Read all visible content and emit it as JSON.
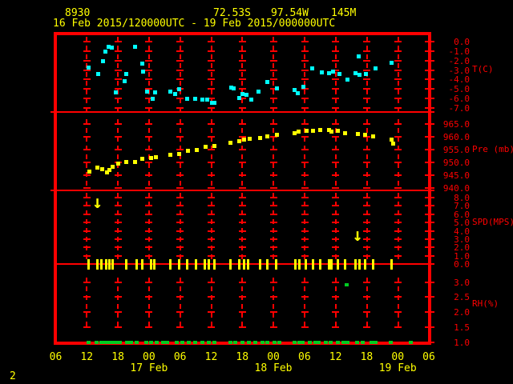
{
  "header": {
    "station_id": "8930",
    "latitude": "72.53S",
    "longitude": "97.54W",
    "elevation": "145M",
    "time_range": "16 Feb 2015/120000UTC - 19 Feb 2015/000000UTC"
  },
  "page_number": "2",
  "colors": {
    "background": "#000000",
    "grid": "#ff0000",
    "axis_text": "#ff0000",
    "label_text": "#ffff00",
    "temperature": "#00ffff",
    "pressure": "#ffff00",
    "wind": "#ffff00",
    "humidity": "#00cc22"
  },
  "x_axis": {
    "unit": "hours since 16 Feb 2015 0600UTC",
    "hour_step": 6,
    "total_hours": 72,
    "hour_labels": [
      "06",
      "12",
      "18",
      "00",
      "06",
      "12",
      "18",
      "00",
      "06",
      "12",
      "18",
      "00",
      "06"
    ],
    "date_labels": [
      {
        "label": "17 Feb",
        "hour": 18
      },
      {
        "label": "18 Feb",
        "hour": 42
      },
      {
        "label": "19 Feb",
        "hour": 66
      }
    ]
  },
  "chart_data": [
    {
      "type": "scatter",
      "name": "air-temperature",
      "ylabel": "T(C)",
      "marker": "square",
      "color": "#00ffff",
      "ylim": [
        -7.0,
        0.0
      ],
      "yticks": [
        "0.0",
        "-1.0",
        "-2.0",
        "-3.0",
        "-4.0",
        "-5.0",
        "-6.0",
        "-7.0"
      ],
      "points": [
        [
          6.3,
          -2.7
        ],
        [
          8.1,
          -3.4
        ],
        [
          9.1,
          -2.0
        ],
        [
          9.5,
          -1.0
        ],
        [
          10.1,
          -0.5
        ],
        [
          10.8,
          -0.6
        ],
        [
          11.5,
          -5.3
        ],
        [
          13.2,
          -4.1
        ],
        [
          13.5,
          -3.4
        ],
        [
          15.3,
          -0.5
        ],
        [
          16.6,
          -2.3
        ],
        [
          16.8,
          -3.1
        ],
        [
          17.6,
          -5.2
        ],
        [
          18.7,
          -6.0
        ],
        [
          19.1,
          -5.3
        ],
        [
          22.1,
          -5.2
        ],
        [
          23.0,
          -5.5
        ],
        [
          23.8,
          -5.0
        ],
        [
          25.3,
          -6.0
        ],
        [
          26.9,
          -6.0
        ],
        [
          28.3,
          -6.1
        ],
        [
          29.2,
          -6.1
        ],
        [
          30.1,
          -6.4
        ],
        [
          30.6,
          -6.4
        ],
        [
          33.8,
          -4.8
        ],
        [
          34.2,
          -4.9
        ],
        [
          35.4,
          -5.9
        ],
        [
          36.0,
          -5.5
        ],
        [
          36.8,
          -5.6
        ],
        [
          37.6,
          -6.1
        ],
        [
          39.1,
          -5.2
        ],
        [
          40.8,
          -4.2
        ],
        [
          42.6,
          -4.9
        ],
        [
          46.0,
          -5.1
        ],
        [
          46.6,
          -5.4
        ],
        [
          47.7,
          -4.7
        ],
        [
          49.4,
          -2.8
        ],
        [
          51.2,
          -3.2
        ],
        [
          52.7,
          -3.3
        ],
        [
          53.5,
          -3.1
        ],
        [
          54.7,
          -3.4
        ],
        [
          56.3,
          -4.0
        ],
        [
          57.8,
          -3.3
        ],
        [
          58.4,
          -1.5
        ],
        [
          58.6,
          -3.5
        ],
        [
          59.8,
          -3.4
        ],
        [
          61.7,
          -2.8
        ],
        [
          64.7,
          -2.2
        ]
      ]
    },
    {
      "type": "scatter",
      "name": "pressure",
      "ylabel": "Pre (mb)",
      "marker": "square",
      "color": "#ffff00",
      "ylim": [
        940.0,
        965.0
      ],
      "yticks": [
        "965.0",
        "960.0",
        "955.0",
        "950.0",
        "945.0",
        "940.0"
      ],
      "points": [
        [
          6.4,
          946.5
        ],
        [
          8.0,
          948.1
        ],
        [
          8.9,
          947.5
        ],
        [
          9.8,
          946.3
        ],
        [
          10.3,
          947.1
        ],
        [
          10.9,
          948.5
        ],
        [
          12.0,
          949.6
        ],
        [
          13.5,
          950.2
        ],
        [
          15.3,
          950.4
        ],
        [
          16.7,
          951.5
        ],
        [
          18.4,
          952.0
        ],
        [
          19.2,
          952.3
        ],
        [
          22.0,
          953.0
        ],
        [
          23.7,
          953.5
        ],
        [
          25.4,
          954.8
        ],
        [
          27.1,
          955.1
        ],
        [
          28.9,
          956.1
        ],
        [
          30.5,
          956.5
        ],
        [
          33.6,
          957.7
        ],
        [
          35.4,
          958.3
        ],
        [
          36.2,
          959.2
        ],
        [
          37.3,
          959.3
        ],
        [
          39.3,
          959.8
        ],
        [
          40.8,
          960.3
        ],
        [
          42.6,
          960.8
        ],
        [
          46.0,
          961.7
        ],
        [
          46.8,
          962.1
        ],
        [
          48.3,
          962.4
        ],
        [
          49.5,
          962.4
        ],
        [
          50.9,
          962.9
        ],
        [
          52.6,
          962.7
        ],
        [
          53.2,
          962.1
        ],
        [
          54.4,
          962.4
        ],
        [
          55.8,
          961.7
        ],
        [
          58.3,
          961.2
        ],
        [
          59.7,
          960.8
        ],
        [
          61.2,
          960.3
        ],
        [
          64.8,
          959.0
        ],
        [
          65.1,
          957.6
        ]
      ]
    },
    {
      "type": "scatter",
      "name": "wind-speed",
      "ylabel": "SPD(MPS)",
      "marker": "vbar",
      "color": "#ffff00",
      "ylim": [
        0.0,
        8.0
      ],
      "yticks": [
        "8.0",
        "7.0",
        "6.0",
        "5.0",
        "4.0",
        "3.0",
        "2.0",
        "1.0",
        "0.0"
      ],
      "points": [
        [
          6.3,
          0
        ],
        [
          8.0,
          0
        ],
        [
          8.7,
          0
        ],
        [
          9.7,
          0
        ],
        [
          10.3,
          0
        ],
        [
          10.9,
          0
        ],
        [
          13.5,
          0
        ],
        [
          15.6,
          0
        ],
        [
          16.6,
          0
        ],
        [
          18.4,
          0
        ],
        [
          19.0,
          0
        ],
        [
          22.1,
          0
        ],
        [
          23.7,
          0
        ],
        [
          25.3,
          0
        ],
        [
          27.0,
          0
        ],
        [
          28.7,
          0
        ],
        [
          29.5,
          0
        ],
        [
          30.6,
          0
        ],
        [
          33.7,
          0
        ],
        [
          35.4,
          0
        ],
        [
          36.2,
          0
        ],
        [
          37.1,
          0
        ],
        [
          39.3,
          0
        ],
        [
          40.7,
          0
        ],
        [
          42.5,
          0
        ],
        [
          46.1,
          0
        ],
        [
          46.9,
          0
        ],
        [
          48.2,
          0
        ],
        [
          49.5,
          0
        ],
        [
          50.9,
          0
        ],
        [
          52.6,
          0
        ],
        [
          53.2,
          0
        ],
        [
          54.4,
          0
        ],
        [
          55.8,
          0
        ],
        [
          57.8,
          0
        ],
        [
          58.5,
          0
        ],
        [
          59.7,
          0
        ],
        [
          61.2,
          0
        ],
        [
          64.8,
          0
        ]
      ],
      "arrows": [
        {
          "hour": 8.1,
          "value": 7.2
        },
        {
          "hour": 58.3,
          "value": 3.3
        }
      ]
    },
    {
      "type": "scatter",
      "name": "relative-humidity",
      "ylabel": "RH(%)",
      "marker": "square",
      "color": "#00cc22",
      "ylim": [
        1.0,
        3.0
      ],
      "yticks": [
        "3.0",
        "2.5",
        "2.0",
        "1.5",
        "1.0"
      ],
      "points": [
        [
          6.3,
          1.0
        ],
        [
          7.8,
          1.0
        ],
        [
          8.7,
          1.0
        ],
        [
          9.4,
          1.0
        ],
        [
          9.9,
          1.0
        ],
        [
          10.5,
          1.0
        ],
        [
          11.1,
          1.0
        ],
        [
          11.7,
          1.0
        ],
        [
          12.3,
          1.0
        ],
        [
          13.7,
          1.0
        ],
        [
          14.5,
          1.0
        ],
        [
          15.6,
          1.0
        ],
        [
          17.4,
          1.0
        ],
        [
          18.4,
          1.0
        ],
        [
          19.4,
          1.0
        ],
        [
          20.7,
          1.0
        ],
        [
          21.4,
          1.0
        ],
        [
          23.3,
          1.0
        ],
        [
          24.4,
          1.0
        ],
        [
          25.6,
          1.0
        ],
        [
          26.9,
          1.0
        ],
        [
          28.2,
          1.0
        ],
        [
          29.5,
          1.0
        ],
        [
          30.6,
          1.0
        ],
        [
          33.7,
          1.0
        ],
        [
          34.5,
          1.0
        ],
        [
          35.9,
          1.0
        ],
        [
          37.2,
          1.0
        ],
        [
          38.5,
          1.0
        ],
        [
          39.9,
          1.0
        ],
        [
          40.8,
          1.0
        ],
        [
          42.2,
          1.0
        ],
        [
          43.1,
          1.0
        ],
        [
          46.0,
          1.0
        ],
        [
          46.9,
          1.0
        ],
        [
          47.6,
          1.0
        ],
        [
          48.9,
          1.0
        ],
        [
          50.0,
          1.0
        ],
        [
          50.7,
          1.0
        ],
        [
          52.0,
          1.0
        ],
        [
          53.0,
          1.0
        ],
        [
          54.3,
          1.0
        ],
        [
          55.4,
          1.0
        ],
        [
          56.3,
          1.0
        ],
        [
          58.1,
          1.0
        ],
        [
          59.2,
          1.0
        ],
        [
          60.8,
          1.0
        ],
        [
          61.7,
          1.0
        ],
        [
          64.6,
          1.0
        ],
        [
          68.5,
          1.0
        ],
        [
          56.1,
          2.9
        ]
      ]
    }
  ]
}
